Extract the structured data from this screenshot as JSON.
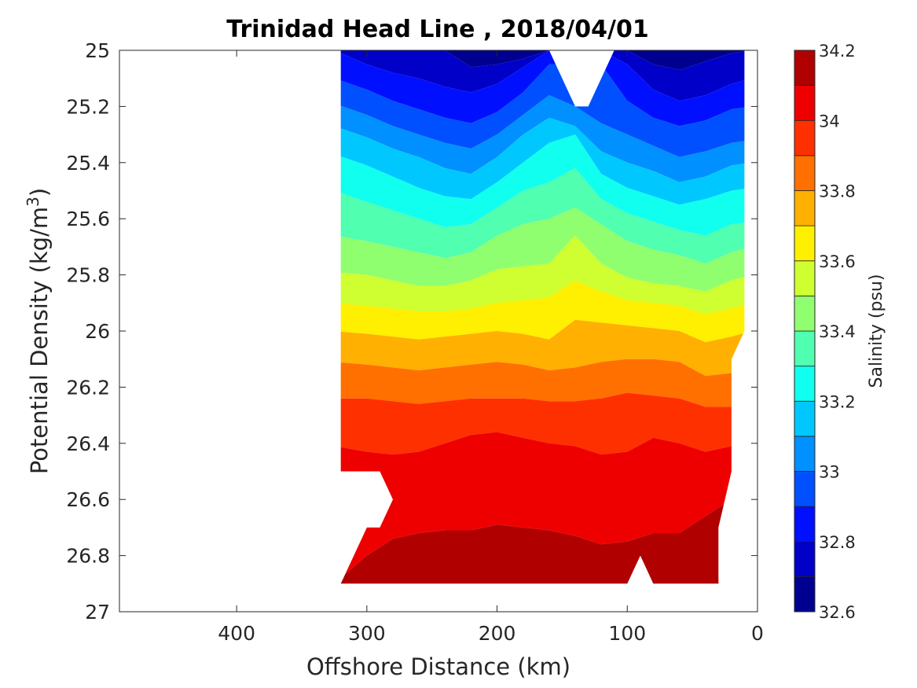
{
  "chart_data": {
    "type": "filled_contour",
    "title": "Trinidad Head Line , 2018/04/01",
    "xlabel": "Offshore Distance (km)",
    "ylabel_main": "Potential Density (kg/m",
    "ylabel_sup": "3",
    "ylabel_close": ")",
    "colorbar_label": "Salinity (psu)",
    "xlim": [
      490,
      0
    ],
    "x_reversed": true,
    "ylim": [
      25,
      27
    ],
    "y_reversed": true,
    "xticks": [
      400,
      300,
      200,
      100,
      0
    ],
    "xtick_labels": [
      "400",
      "300",
      "200",
      "100",
      "0"
    ],
    "yticks": [
      25,
      25.2,
      25.4,
      25.6,
      25.8,
      26,
      26.2,
      26.4,
      26.6,
      26.8,
      27
    ],
    "ytick_labels": [
      "25",
      "25.2",
      "25.4",
      "25.6",
      "25.8",
      "26",
      "26.2",
      "26.4",
      "26.6",
      "26.8",
      "27"
    ],
    "colorbar": {
      "min": 32.6,
      "max": 34.2,
      "step": 0.1,
      "tick_values": [
        32.6,
        32.8,
        33,
        33.2,
        33.4,
        33.6,
        33.8,
        34,
        34.2
      ],
      "tick_labels": [
        "32.6",
        "32.8",
        "33",
        "33.2",
        "33.4",
        "33.6",
        "33.8",
        "34",
        "34.2"
      ],
      "colors": [
        "#000090",
        "#0000c8",
        "#0010ff",
        "#0050ff",
        "#0090ff",
        "#00c8ff",
        "#10ffef",
        "#50ffaf",
        "#90ff6f",
        "#cfff30",
        "#ffef00",
        "#ffb000",
        "#ff7000",
        "#ff3000",
        "#ef0000",
        "#b00000"
      ]
    },
    "stations_km": [
      320,
      300,
      280,
      260,
      240,
      220,
      200,
      180,
      160,
      140,
      120,
      100,
      80,
      60,
      40,
      20,
      10
    ],
    "boundaries": {
      "32.7": [
        25.0,
        25.0,
        25.0,
        25.0,
        25.0,
        25.06,
        25.05,
        25.03,
        25.0,
        null,
        null,
        25.0,
        25.05,
        25.07,
        25.04,
        25.01,
        25.0
      ],
      "32.8": [
        25.0,
        25.05,
        25.08,
        25.1,
        25.13,
        25.15,
        25.12,
        25.06,
        25.0,
        null,
        null,
        25.05,
        25.14,
        25.18,
        25.16,
        25.12,
        25.1
      ],
      "32.9": [
        25.1,
        25.14,
        25.18,
        25.21,
        25.24,
        25.26,
        25.22,
        25.15,
        25.05,
        null,
        null,
        25.18,
        25.24,
        25.27,
        25.25,
        25.21,
        25.2
      ],
      "33.0": [
        25.19,
        25.23,
        25.27,
        25.3,
        25.33,
        25.35,
        25.3,
        25.23,
        25.16,
        25.2,
        25.26,
        25.3,
        25.34,
        25.38,
        25.36,
        25.33,
        25.32
      ],
      "33.1": [
        25.27,
        25.31,
        25.35,
        25.38,
        25.42,
        25.44,
        25.38,
        25.3,
        25.24,
        25.27,
        25.36,
        25.4,
        25.43,
        25.47,
        25.45,
        25.41,
        25.4
      ],
      "33.2": [
        25.37,
        25.41,
        25.45,
        25.49,
        25.52,
        25.53,
        25.47,
        25.4,
        25.33,
        25.3,
        25.44,
        25.49,
        25.52,
        25.55,
        25.53,
        25.5,
        25.49
      ],
      "33.3": [
        25.5,
        25.54,
        25.57,
        25.6,
        25.63,
        25.62,
        25.56,
        25.5,
        25.47,
        25.42,
        25.53,
        25.58,
        25.61,
        25.64,
        25.66,
        25.62,
        25.61
      ],
      "33.4": [
        25.66,
        25.68,
        25.7,
        25.72,
        25.74,
        25.72,
        25.66,
        25.62,
        25.6,
        25.56,
        25.62,
        25.68,
        25.71,
        25.73,
        25.76,
        25.72,
        25.7
      ],
      "33.5": [
        25.79,
        25.8,
        25.82,
        25.84,
        25.84,
        25.82,
        25.78,
        25.77,
        25.76,
        25.66,
        25.76,
        25.81,
        25.83,
        25.84,
        25.86,
        25.82,
        25.8
      ],
      "33.6": [
        25.9,
        25.91,
        25.92,
        25.93,
        25.93,
        25.92,
        25.9,
        25.89,
        25.88,
        25.82,
        25.86,
        25.89,
        25.9,
        25.91,
        25.94,
        25.92,
        25.9
      ],
      "33.7": [
        26.0,
        26.01,
        26.02,
        26.03,
        26.02,
        26.01,
        26.0,
        26.01,
        26.03,
        25.96,
        25.97,
        25.98,
        25.99,
        26.0,
        26.04,
        26.02,
        26.0
      ],
      "33.8": [
        26.11,
        26.12,
        26.13,
        26.14,
        26.13,
        26.12,
        26.11,
        26.12,
        26.14,
        26.13,
        26.11,
        26.1,
        26.1,
        26.11,
        26.16,
        26.15,
        null
      ],
      "33.9": [
        26.24,
        26.24,
        26.25,
        26.26,
        26.25,
        26.24,
        26.24,
        26.24,
        26.25,
        26.25,
        26.24,
        26.22,
        26.23,
        26.24,
        26.27,
        26.27,
        null
      ],
      "34.0": [
        26.41,
        26.43,
        26.44,
        26.43,
        26.4,
        26.37,
        26.36,
        26.38,
        26.4,
        26.41,
        26.44,
        26.43,
        26.38,
        26.4,
        26.43,
        26.41,
        null
      ],
      "34.1": [
        26.9,
        26.8,
        26.74,
        26.72,
        26.71,
        26.71,
        26.69,
        26.7,
        26.71,
        26.73,
        26.76,
        26.75,
        26.72,
        26.72,
        26.66,
        26.6,
        null
      ]
    },
    "coverage_polygon": [
      [
        320,
        25.0
      ],
      [
        160,
        25.0
      ],
      [
        140,
        25.2
      ],
      [
        130,
        25.2
      ],
      [
        110,
        25.0
      ],
      [
        10,
        25.0
      ],
      [
        10,
        26.0
      ],
      [
        20,
        26.1
      ],
      [
        20,
        26.5
      ],
      [
        30,
        26.7
      ],
      [
        30,
        26.9
      ],
      [
        80,
        26.9
      ],
      [
        90,
        26.8
      ],
      [
        100,
        26.9
      ],
      [
        320,
        26.9
      ],
      [
        310,
        26.8
      ],
      [
        300,
        26.7
      ],
      [
        290,
        26.7
      ],
      [
        280,
        26.6
      ],
      [
        290,
        26.5
      ],
      [
        320,
        26.5
      ]
    ],
    "high_salinity_patch": {
      "level": 34.2,
      "points": [
        [
          30,
          26.88
        ],
        [
          55,
          26.89
        ],
        [
          30,
          26.9
        ]
      ]
    }
  }
}
